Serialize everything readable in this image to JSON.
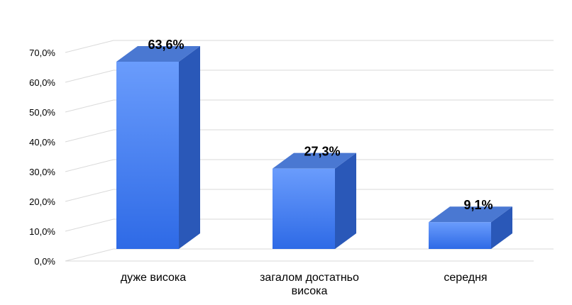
{
  "chart_data": {
    "type": "bar",
    "title": "",
    "xlabel": "",
    "ylabel": "",
    "categories": [
      [
        "дуже висока"
      ],
      [
        "загалом достатньо",
        "висока"
      ],
      [
        "середня"
      ]
    ],
    "values": [
      63.6,
      27.3,
      9.1
    ],
    "data_labels": [
      "63,6%",
      "27,3%",
      "9,1%"
    ],
    "ylim": [
      0,
      70
    ],
    "yticks": [
      0,
      10,
      20,
      30,
      40,
      50,
      60,
      70
    ],
    "ytick_labels": [
      "0,0%",
      "10,0%",
      "20,0%",
      "30,0%",
      "40,0%",
      "50,0%",
      "60,0%",
      "70,0%"
    ],
    "grid": true,
    "style": "3d-column",
    "colors": {
      "front_top": "#6a9cfc",
      "front_bottom": "#2e6ae6",
      "side": "#2a58b8",
      "top": "#4a78d2",
      "grid": "#d9d9d9"
    }
  }
}
